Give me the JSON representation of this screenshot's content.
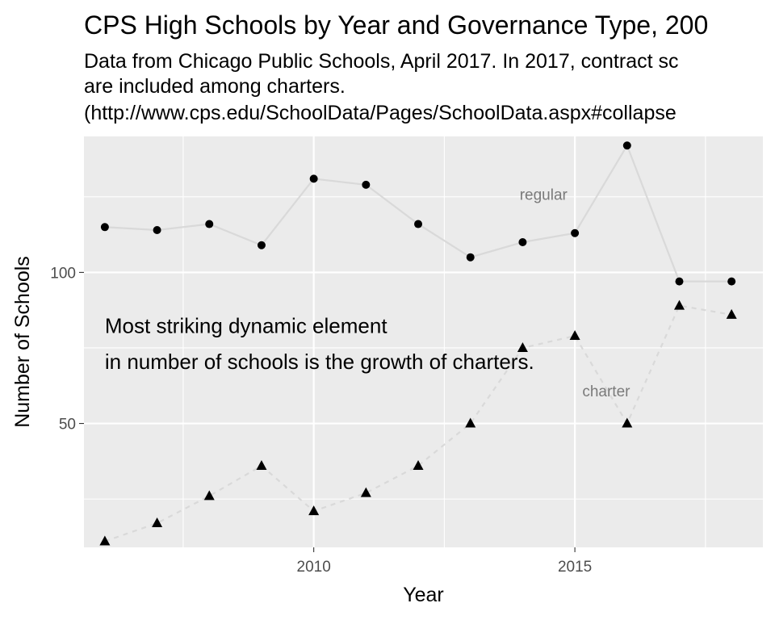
{
  "chart_data": {
    "type": "line",
    "title": "CPS High Schools by Year and Governance Type, 200",
    "subtitle_lines": [
      "Data from Chicago Public Schools, April 2017. In 2017, contract sc",
      "are included among charters.",
      "(http://www.cps.edu/SchoolData/Pages/SchoolData.aspx#collapse"
    ],
    "xlabel": "Year",
    "ylabel": "Number of Schools",
    "xlim": [
      2005.6,
      2018.6
    ],
    "ylim": [
      9,
      145
    ],
    "x_ticks": [
      2010,
      2015
    ],
    "y_ticks": [
      50,
      100
    ],
    "x_tick_labels": [
      "2010",
      "2015"
    ],
    "y_tick_labels": [
      "50",
      "100"
    ],
    "grid": true,
    "legend": "none",
    "series": [
      {
        "name": "regular",
        "marker": "circle",
        "line_style": "solid",
        "x": [
          2006,
          2007,
          2008,
          2009,
          2010,
          2011,
          2012,
          2013,
          2014,
          2015,
          2016,
          2017,
          2018
        ],
        "y": [
          115,
          114,
          116,
          109,
          131,
          129,
          116,
          105,
          110,
          113,
          142,
          97,
          97
        ]
      },
      {
        "name": "charter",
        "marker": "triangle",
        "line_style": "dashed",
        "x": [
          2006,
          2007,
          2008,
          2009,
          2010,
          2011,
          2012,
          2013,
          2014,
          2015,
          2016,
          2017,
          2018
        ],
        "y": [
          11,
          17,
          26,
          36,
          21,
          27,
          36,
          50,
          75,
          79,
          50,
          89,
          86
        ]
      }
    ],
    "series_labels": [
      {
        "text": "regular",
        "x": 2014.4,
        "y": 124
      },
      {
        "text": "charter",
        "x": 2015.6,
        "y": 59
      }
    ],
    "annotation": {
      "lines": [
        "Most striking dynamic element",
        "in number of schools is the growth of charters."
      ],
      "x": 2006,
      "y": [
        80,
        68
      ]
    },
    "colors": {
      "panel_background": "#ebebeb",
      "grid_major": "#ffffff",
      "series_line": "#d9d9d9",
      "marker": "#000000",
      "series_label": "#7a7a7a"
    }
  }
}
